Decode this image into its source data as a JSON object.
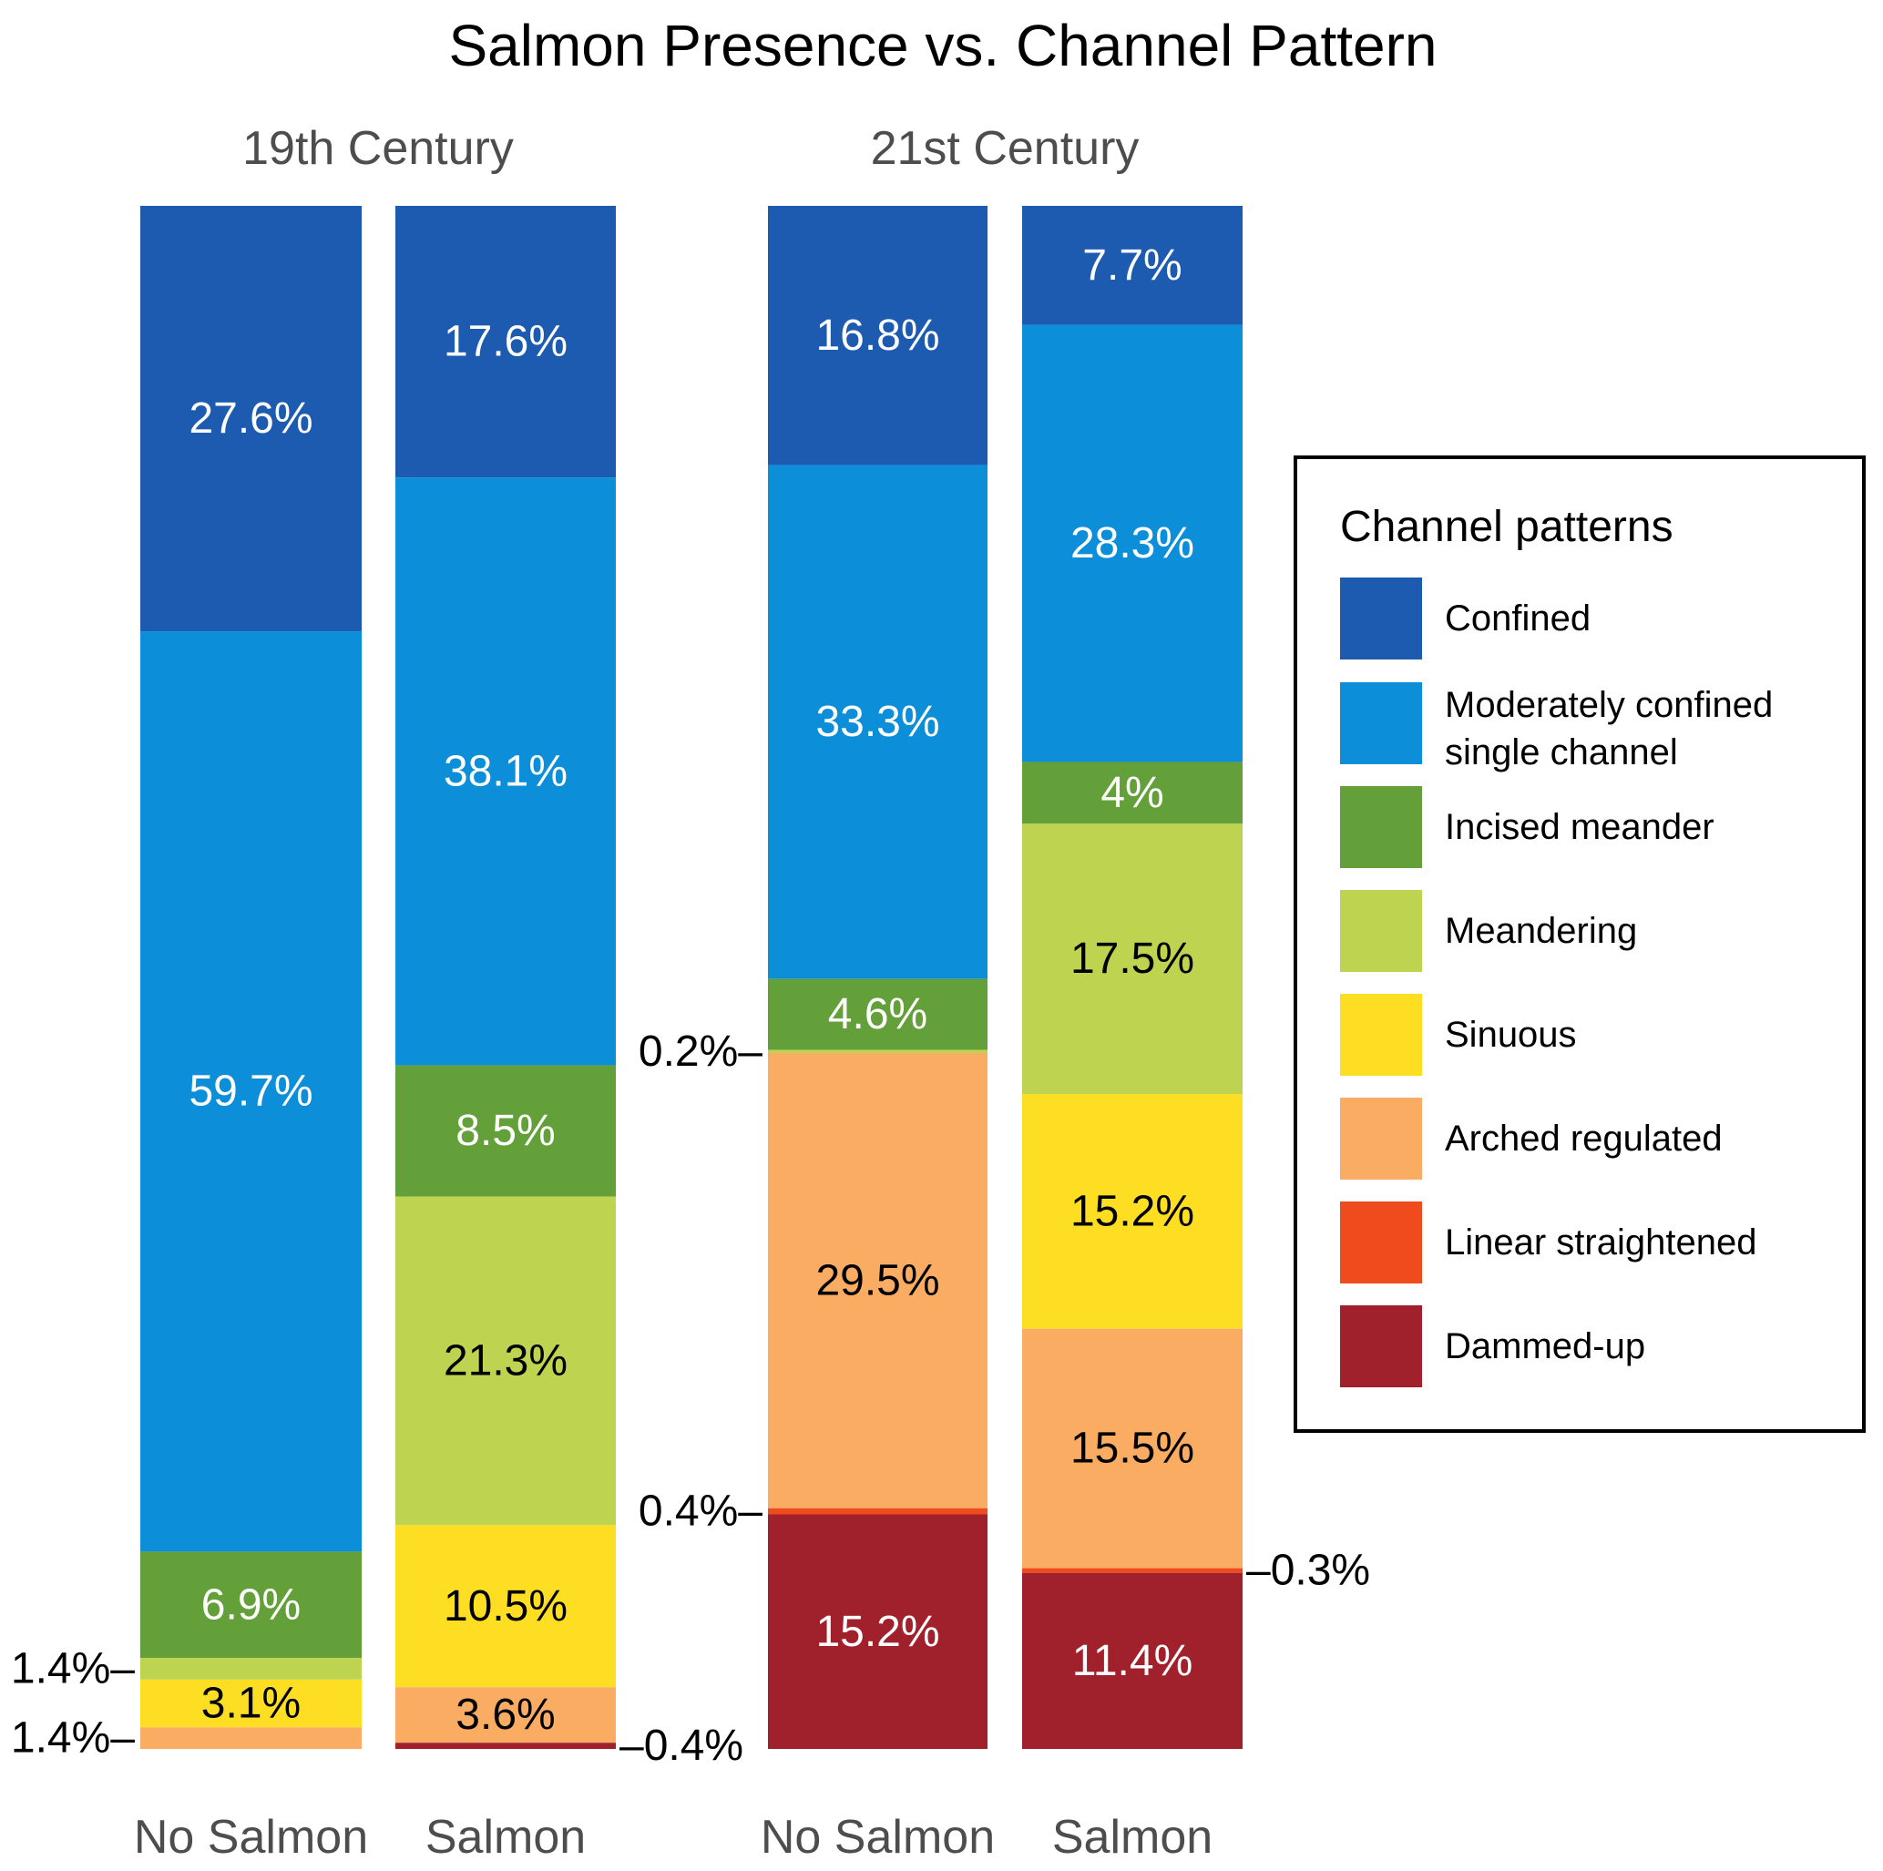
{
  "chart_data": {
    "type": "bar",
    "stacked": true,
    "title": "Salmon Presence vs. Channel Pattern",
    "xlabel": "",
    "ylabel": "",
    "ylim": [
      0,
      100
    ],
    "grid": false,
    "legend": {
      "title": "Channel patterns",
      "placement": "right",
      "entries": [
        {
          "name": "Confined",
          "color": "#1c5bb0"
        },
        {
          "name": "Moderately confined single channel",
          "lines": [
            "Moderately confined",
            "single channel"
          ],
          "color": "#0c8fd8"
        },
        {
          "name": "Incised meander",
          "color": "#63a03a"
        },
        {
          "name": "Meandering",
          "color": "#bed34f"
        },
        {
          "name": "Sinuous",
          "color": "#fede23"
        },
        {
          "name": "Arched regulated",
          "color": "#f9ac62"
        },
        {
          "name": "Linear straightened",
          "color": "#ef4b1c"
        },
        {
          "name": "Dammed-up",
          "color": "#a0212b"
        }
      ]
    },
    "facets": [
      {
        "label": "19th Century",
        "bars": [
          {
            "category": "No Salmon",
            "segments": [
              {
                "series": "Confined",
                "value": 27.6,
                "label": "27.6%"
              },
              {
                "series": "Moderately confined single channel",
                "value": 59.7,
                "label": "59.7%"
              },
              {
                "series": "Incised meander",
                "value": 6.9,
                "label": "6.9%"
              },
              {
                "series": "Meandering",
                "value": 1.4,
                "label": "1.4%",
                "callout": "left"
              },
              {
                "series": "Sinuous",
                "value": 3.1,
                "label": "3.1%"
              },
              {
                "series": "Arched regulated",
                "value": 1.4,
                "label": "1.4%",
                "callout": "left"
              }
            ]
          },
          {
            "category": "Salmon",
            "segments": [
              {
                "series": "Confined",
                "value": 17.6,
                "label": "17.6%"
              },
              {
                "series": "Moderately confined single channel",
                "value": 38.1,
                "label": "38.1%"
              },
              {
                "series": "Incised meander",
                "value": 8.5,
                "label": "8.5%"
              },
              {
                "series": "Meandering",
                "value": 21.3,
                "label": "21.3%"
              },
              {
                "series": "Sinuous",
                "value": 10.5,
                "label": "10.5%"
              },
              {
                "series": "Arched regulated",
                "value": 3.6,
                "label": "3.6%"
              },
              {
                "series": "Dammed-up",
                "value": 0.4,
                "label": "0.4%",
                "callout": "right"
              }
            ]
          }
        ]
      },
      {
        "label": "21st Century",
        "bars": [
          {
            "category": "No Salmon",
            "segments": [
              {
                "series": "Confined",
                "value": 16.8,
                "label": "16.8%"
              },
              {
                "series": "Moderately confined single channel",
                "value": 33.3,
                "label": "33.3%"
              },
              {
                "series": "Incised meander",
                "value": 4.6,
                "label": "4.6%"
              },
              {
                "series": "Meandering",
                "value": 0.2,
                "label": "0.2%",
                "callout": "left"
              },
              {
                "series": "Arched regulated",
                "value": 29.5,
                "label": "29.5%"
              },
              {
                "series": "Linear straightened",
                "value": 0.4,
                "label": "0.4%",
                "callout": "left"
              },
              {
                "series": "Dammed-up",
                "value": 15.2,
                "label": "15.2%"
              }
            ]
          },
          {
            "category": "Salmon",
            "segments": [
              {
                "series": "Confined",
                "value": 7.7,
                "label": "7.7%"
              },
              {
                "series": "Moderately confined single channel",
                "value": 28.3,
                "label": "28.3%"
              },
              {
                "series": "Incised meander",
                "value": 4.0,
                "label": "4%"
              },
              {
                "series": "Meandering",
                "value": 17.5,
                "label": "17.5%"
              },
              {
                "series": "Sinuous",
                "value": 15.2,
                "label": "15.2%"
              },
              {
                "series": "Arched regulated",
                "value": 15.5,
                "label": "15.5%"
              },
              {
                "series": "Linear straightened",
                "value": 0.3,
                "label": "0.3%",
                "callout": "right"
              },
              {
                "series": "Dammed-up",
                "value": 11.4,
                "label": "11.4%"
              }
            ]
          }
        ]
      }
    ],
    "label_text_colors": {
      "Confined": "#ffffff",
      "Moderately confined single channel": "#ffffff",
      "Incised meander": "#ffffff",
      "Meandering": "#000000",
      "Sinuous": "#000000",
      "Arched regulated": "#000000",
      "Linear straightened": "#ffffff",
      "Dammed-up": "#ffffff"
    }
  }
}
